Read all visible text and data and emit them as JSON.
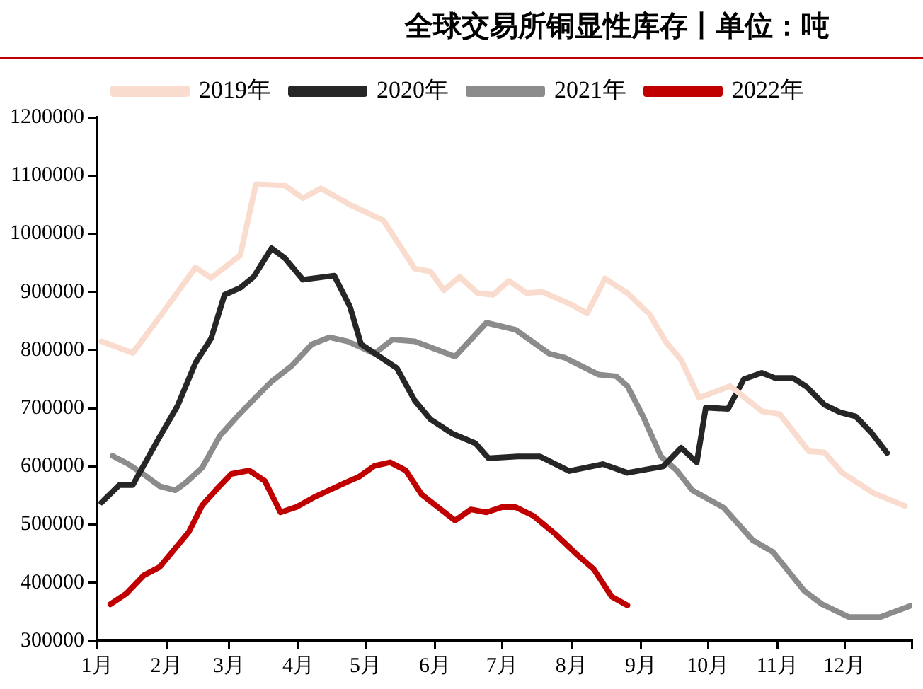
{
  "chart_data": {
    "type": "line",
    "title": "全球交易所铜显性库存丨单位：吨",
    "legend": "top",
    "grid": false,
    "marker": "none",
    "line_style": "solid",
    "xlim": [
      "--01-01",
      "--12-31"
    ],
    "xticks": [
      {
        "value": "--01-01",
        "label": "1月"
      },
      {
        "value": "--02-01",
        "label": "2月"
      },
      {
        "value": "--03-01",
        "label": "3月"
      },
      {
        "value": "--04-01",
        "label": "4月"
      },
      {
        "value": "--05-01",
        "label": "5月"
      },
      {
        "value": "--06-01",
        "label": "6月"
      },
      {
        "value": "--07-01",
        "label": "7月"
      },
      {
        "value": "--08-01",
        "label": "8月"
      },
      {
        "value": "--09-01",
        "label": "9月"
      },
      {
        "value": "--10-01",
        "label": "10月"
      },
      {
        "value": "--11-01",
        "label": "11月"
      },
      {
        "value": "--12-01",
        "label": "12月"
      },
      {
        "value": "--12-31",
        "label": null
      }
    ],
    "ylim": [
      300000,
      1200000
    ],
    "yticks": [
      300000,
      400000,
      500000,
      600000,
      700000,
      800000,
      900000,
      1000000,
      1100000,
      1200000
    ],
    "series": [
      {
        "name": "2019年",
        "color": "#fadccf",
        "x": [
          "--01-03",
          "--01-17",
          "--01-29",
          "--02-14",
          "--02-21",
          "--03-06",
          "--03-13",
          "--03-26",
          "--04-03",
          "--04-11",
          "--04-24",
          "--05-09",
          "--05-23",
          "--05-30",
          "--06-05",
          "--06-12",
          "--06-20",
          "--06-27",
          "--07-04",
          "--07-12",
          "--07-19",
          "--07-31",
          "--08-08",
          "--08-16",
          "--08-26",
          "--09-05",
          "--09-12",
          "--09-19",
          "--09-27",
          "--10-11",
          "--10-25",
          "--11-02",
          "--11-15",
          "--11-22",
          "--11-30",
          "--12-14",
          "--12-28"
        ],
        "values": [
          815000,
          795000,
          857000,
          942000,
          924000,
          963000,
          1085000,
          1083000,
          1061000,
          1078000,
          1050000,
          1023000,
          940000,
          935000,
          903000,
          926000,
          898000,
          895000,
          919000,
          898000,
          900000,
          880000,
          863000,
          923000,
          898000,
          861000,
          815000,
          783000,
          718000,
          738000,
          695000,
          690000,
          626000,
          624000,
          589000,
          554000,
          532000
        ]
      },
      {
        "name": "2020年",
        "color": "#262626",
        "x": [
          "--01-03",
          "--01-11",
          "--01-17",
          "--01-28",
          "--02-06",
          "--02-14",
          "--02-21",
          "--02-27",
          "--03-06",
          "--03-12",
          "--03-20",
          "--03-26",
          "--04-03",
          "--04-17",
          "--04-24",
          "--04-29",
          "--05-15",
          "--05-23",
          "--05-30",
          "--06-09",
          "--06-19",
          "--06-25",
          "--07-08",
          "--07-18",
          "--07-31",
          "--08-15",
          "--08-26",
          "--09-11",
          "--09-19",
          "--09-26",
          "--09-30",
          "--10-10",
          "--10-17",
          "--10-25",
          "--10-31",
          "--11-08",
          "--11-14",
          "--11-22",
          "--11-29",
          "--12-06",
          "--12-13",
          "--12-20"
        ],
        "values": [
          538000,
          568000,
          568000,
          644000,
          704000,
          778000,
          820000,
          895000,
          907000,
          926000,
          975000,
          958000,
          921000,
          928000,
          875000,
          810000,
          769000,
          713000,
          681000,
          656000,
          640000,
          614000,
          617000,
          617000,
          592000,
          604000,
          589000,
          600000,
          632000,
          607000,
          701000,
          699000,
          750000,
          761000,
          752000,
          752000,
          737000,
          706000,
          693000,
          686000,
          658000,
          623000
        ]
      },
      {
        "name": "2021年",
        "color": "#8c8c8c",
        "x": [
          "--01-08",
          "--01-15",
          "--01-22",
          "--01-29",
          "--02-05",
          "--02-10",
          "--02-17",
          "--02-25",
          "--03-04",
          "--03-12",
          "--03-20",
          "--03-29",
          "--04-07",
          "--04-15",
          "--04-23",
          "--05-05",
          "--05-13",
          "--05-23",
          "--06-10",
          "--06-24",
          "--07-07",
          "--07-22",
          "--07-29",
          "--08-13",
          "--08-21",
          "--08-26",
          "--09-02",
          "--09-10",
          "--09-17",
          "--09-24",
          "--10-08",
          "--10-21",
          "--10-30",
          "--11-13",
          "--11-21",
          "--12-03",
          "--12-17",
          "--12-31"
        ],
        "values": [
          618000,
          604000,
          586000,
          566000,
          559000,
          573000,
          598000,
          653000,
          683000,
          715000,
          746000,
          773000,
          810000,
          822000,
          815000,
          794000,
          818000,
          815000,
          789000,
          847000,
          835000,
          794000,
          787000,
          758000,
          755000,
          738000,
          686000,
          617000,
          593000,
          559000,
          529000,
          473000,
          453000,
          386000,
          363000,
          341000,
          341000,
          361000
        ]
      },
      {
        "name": "2022年",
        "color": "#c00000",
        "x": [
          "--01-07",
          "--01-14",
          "--01-22",
          "--01-29",
          "--02-11",
          "--02-17",
          "--02-24",
          "--03-02",
          "--03-10",
          "--03-17",
          "--03-24",
          "--03-31",
          "--04-08",
          "--04-22",
          "--04-28",
          "--05-05",
          "--05-12",
          "--05-19",
          "--05-26",
          "--06-10",
          "--06-17",
          "--06-24",
          "--07-01",
          "--07-07",
          "--07-15",
          "--07-25",
          "--08-03",
          "--08-11",
          "--08-19",
          "--08-26"
        ],
        "values": [
          363000,
          381000,
          413000,
          427000,
          487000,
          533000,
          563000,
          587000,
          593000,
          575000,
          521000,
          530000,
          547000,
          572000,
          582000,
          601000,
          607000,
          593000,
          552000,
          507000,
          526000,
          521000,
          530000,
          530000,
          515000,
          483000,
          450000,
          423000,
          376000,
          361000
        ]
      }
    ]
  }
}
